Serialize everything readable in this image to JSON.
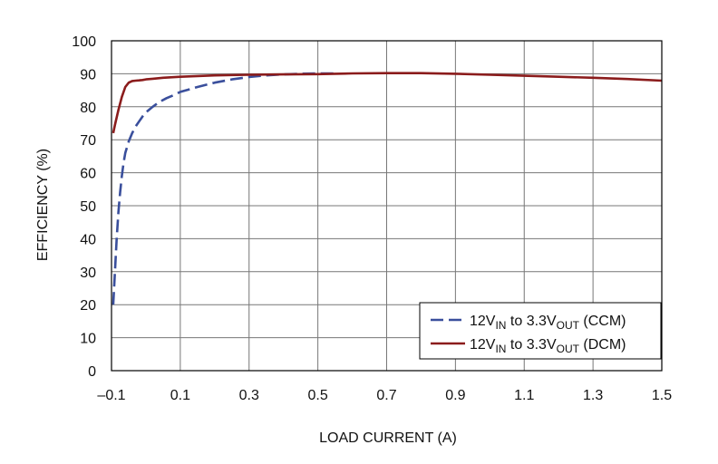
{
  "chart_data": {
    "type": "line",
    "title": "",
    "xlabel": "LOAD CURRENT (A)",
    "ylabel": "EFFICIENCY (%)",
    "xlim": [
      -0.1,
      1.5
    ],
    "ylim": [
      0,
      100
    ],
    "xticks": [
      -0.1,
      0.1,
      0.3,
      0.5,
      0.7,
      0.9,
      1.1,
      1.3,
      1.5
    ],
    "xtick_labels": [
      "–0.1",
      "0.1",
      "0.3",
      "0.5",
      "0.7",
      "0.9",
      "1.1",
      "1.3",
      "1.5"
    ],
    "yticks": [
      0,
      10,
      20,
      30,
      40,
      50,
      60,
      70,
      80,
      90,
      100
    ],
    "ytick_labels": [
      "0",
      "10",
      "20",
      "30",
      "40",
      "50",
      "60",
      "70",
      "80",
      "90",
      "100"
    ],
    "grid": true,
    "legend_position": "bottom-right",
    "series": [
      {
        "name_parts": {
          "a": "12V",
          "a_sub": "IN",
          "b": " to 3.3V",
          "b_sub": "OUT",
          "c": " (CCM)"
        },
        "color": "#3a4f9c",
        "dash": "dashed",
        "x": [
          -0.095,
          -0.09,
          -0.085,
          -0.08,
          -0.075,
          -0.07,
          -0.065,
          -0.06,
          -0.05,
          -0.04,
          -0.03,
          -0.02,
          -0.01,
          0.0,
          0.02,
          0.04,
          0.06,
          0.08,
          0.1,
          0.15,
          0.2,
          0.25,
          0.3,
          0.35,
          0.4,
          0.45,
          0.5,
          0.55
        ],
        "y": [
          20,
          30,
          40,
          48,
          54,
          59,
          63,
          66,
          69.5,
          72,
          74,
          75.5,
          77,
          78.3,
          80,
          81.5,
          82.6,
          83.5,
          84.5,
          86,
          87.3,
          88.3,
          89,
          89.5,
          89.8,
          90,
          90.1,
          90.1
        ]
      },
      {
        "name_parts": {
          "a": "12V",
          "a_sub": "IN",
          "b": " to 3.3V",
          "b_sub": "OUT",
          "c": " (DCM)"
        },
        "color": "#8b1c1c",
        "dash": "solid",
        "x": [
          -0.095,
          -0.09,
          -0.08,
          -0.07,
          -0.06,
          -0.05,
          -0.04,
          -0.03,
          -0.02,
          -0.01,
          0.0,
          0.02,
          0.05,
          0.1,
          0.2,
          0.3,
          0.4,
          0.5,
          0.6,
          0.7,
          0.8,
          0.9,
          1.0,
          1.1,
          1.2,
          1.3,
          1.4,
          1.5
        ],
        "y": [
          72,
          74.5,
          79,
          83,
          86,
          87.3,
          87.8,
          87.9,
          88,
          88.1,
          88.3,
          88.5,
          88.8,
          89.1,
          89.5,
          89.7,
          89.8,
          89.9,
          90.1,
          90.2,
          90.2,
          90,
          89.7,
          89.4,
          89.1,
          88.8,
          88.4,
          87.9
        ]
      }
    ]
  }
}
